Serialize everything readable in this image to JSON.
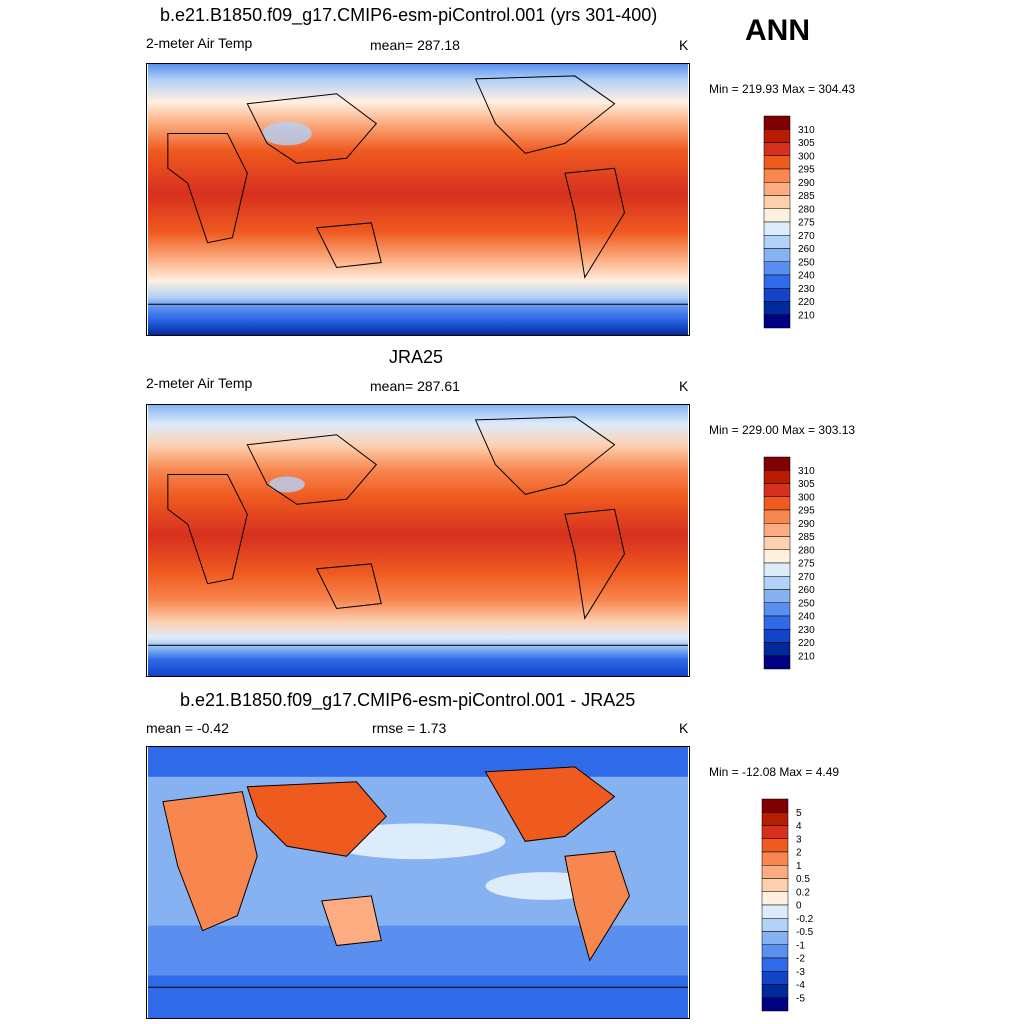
{
  "season": "ANN",
  "panels": [
    {
      "title": "b.e21.B1850.f09_g17.CMIP6-esm-piControl.001 (yrs 301-400)",
      "left_label": "2-meter Air Temp",
      "center_label": "mean= 287.18",
      "units": "K",
      "minmax": "Min = 219.93 Max = 304.43",
      "colorbar": [
        "310",
        "305",
        "300",
        "295",
        "290",
        "285",
        "280",
        "275",
        "270",
        "260",
        "250",
        "240",
        "230",
        "220",
        "210"
      ],
      "colors": [
        "#7f0000",
        "#b71c00",
        "#d7301f",
        "#ef5a1f",
        "#f7864f",
        "#fcac80",
        "#fdd0b0",
        "#fff0e0",
        "#dcecfb",
        "#b3d2f7",
        "#86b2f2",
        "#5a8ff0",
        "#2f6ae8",
        "#1344c8",
        "#002a9c",
        "#000082"
      ]
    },
    {
      "title": "JRA25",
      "left_label": "2-meter Air Temp",
      "center_label": "mean= 287.61",
      "units": "K",
      "minmax": "Min = 229.00 Max = 303.13",
      "colorbar": [
        "310",
        "305",
        "300",
        "295",
        "290",
        "285",
        "280",
        "275",
        "270",
        "260",
        "250",
        "240",
        "230",
        "220",
        "210"
      ],
      "colors": [
        "#7f0000",
        "#b71c00",
        "#d7301f",
        "#ef5a1f",
        "#f7864f",
        "#fcac80",
        "#fdd0b0",
        "#fff0e0",
        "#dcecfb",
        "#b3d2f7",
        "#86b2f2",
        "#5a8ff0",
        "#2f6ae8",
        "#1344c8",
        "#002a9c",
        "#000082"
      ]
    },
    {
      "title": "b.e21.B1850.f09_g17.CMIP6-esm-piControl.001 - JRA25",
      "left_label": "mean =  -0.42",
      "center_label": "rmse =   1.73",
      "units": "K",
      "minmax": "Min = -12.08 Max =   4.49",
      "colorbar": [
        "5",
        "4",
        "3",
        "2",
        "1",
        "0.5",
        "0.2",
        "0",
        "-0.2",
        "-0.5",
        "-1",
        "-2",
        "-3",
        "-4",
        "-5"
      ],
      "colors": [
        "#7f0000",
        "#b71c00",
        "#d7301f",
        "#ef5a1f",
        "#f7864f",
        "#fcac80",
        "#fdd0b0",
        "#fff0e0",
        "#dcecfb",
        "#b3d2f7",
        "#86b2f2",
        "#5a8ff0",
        "#2f6ae8",
        "#1344c8",
        "#002a9c",
        "#000082"
      ]
    }
  ]
}
